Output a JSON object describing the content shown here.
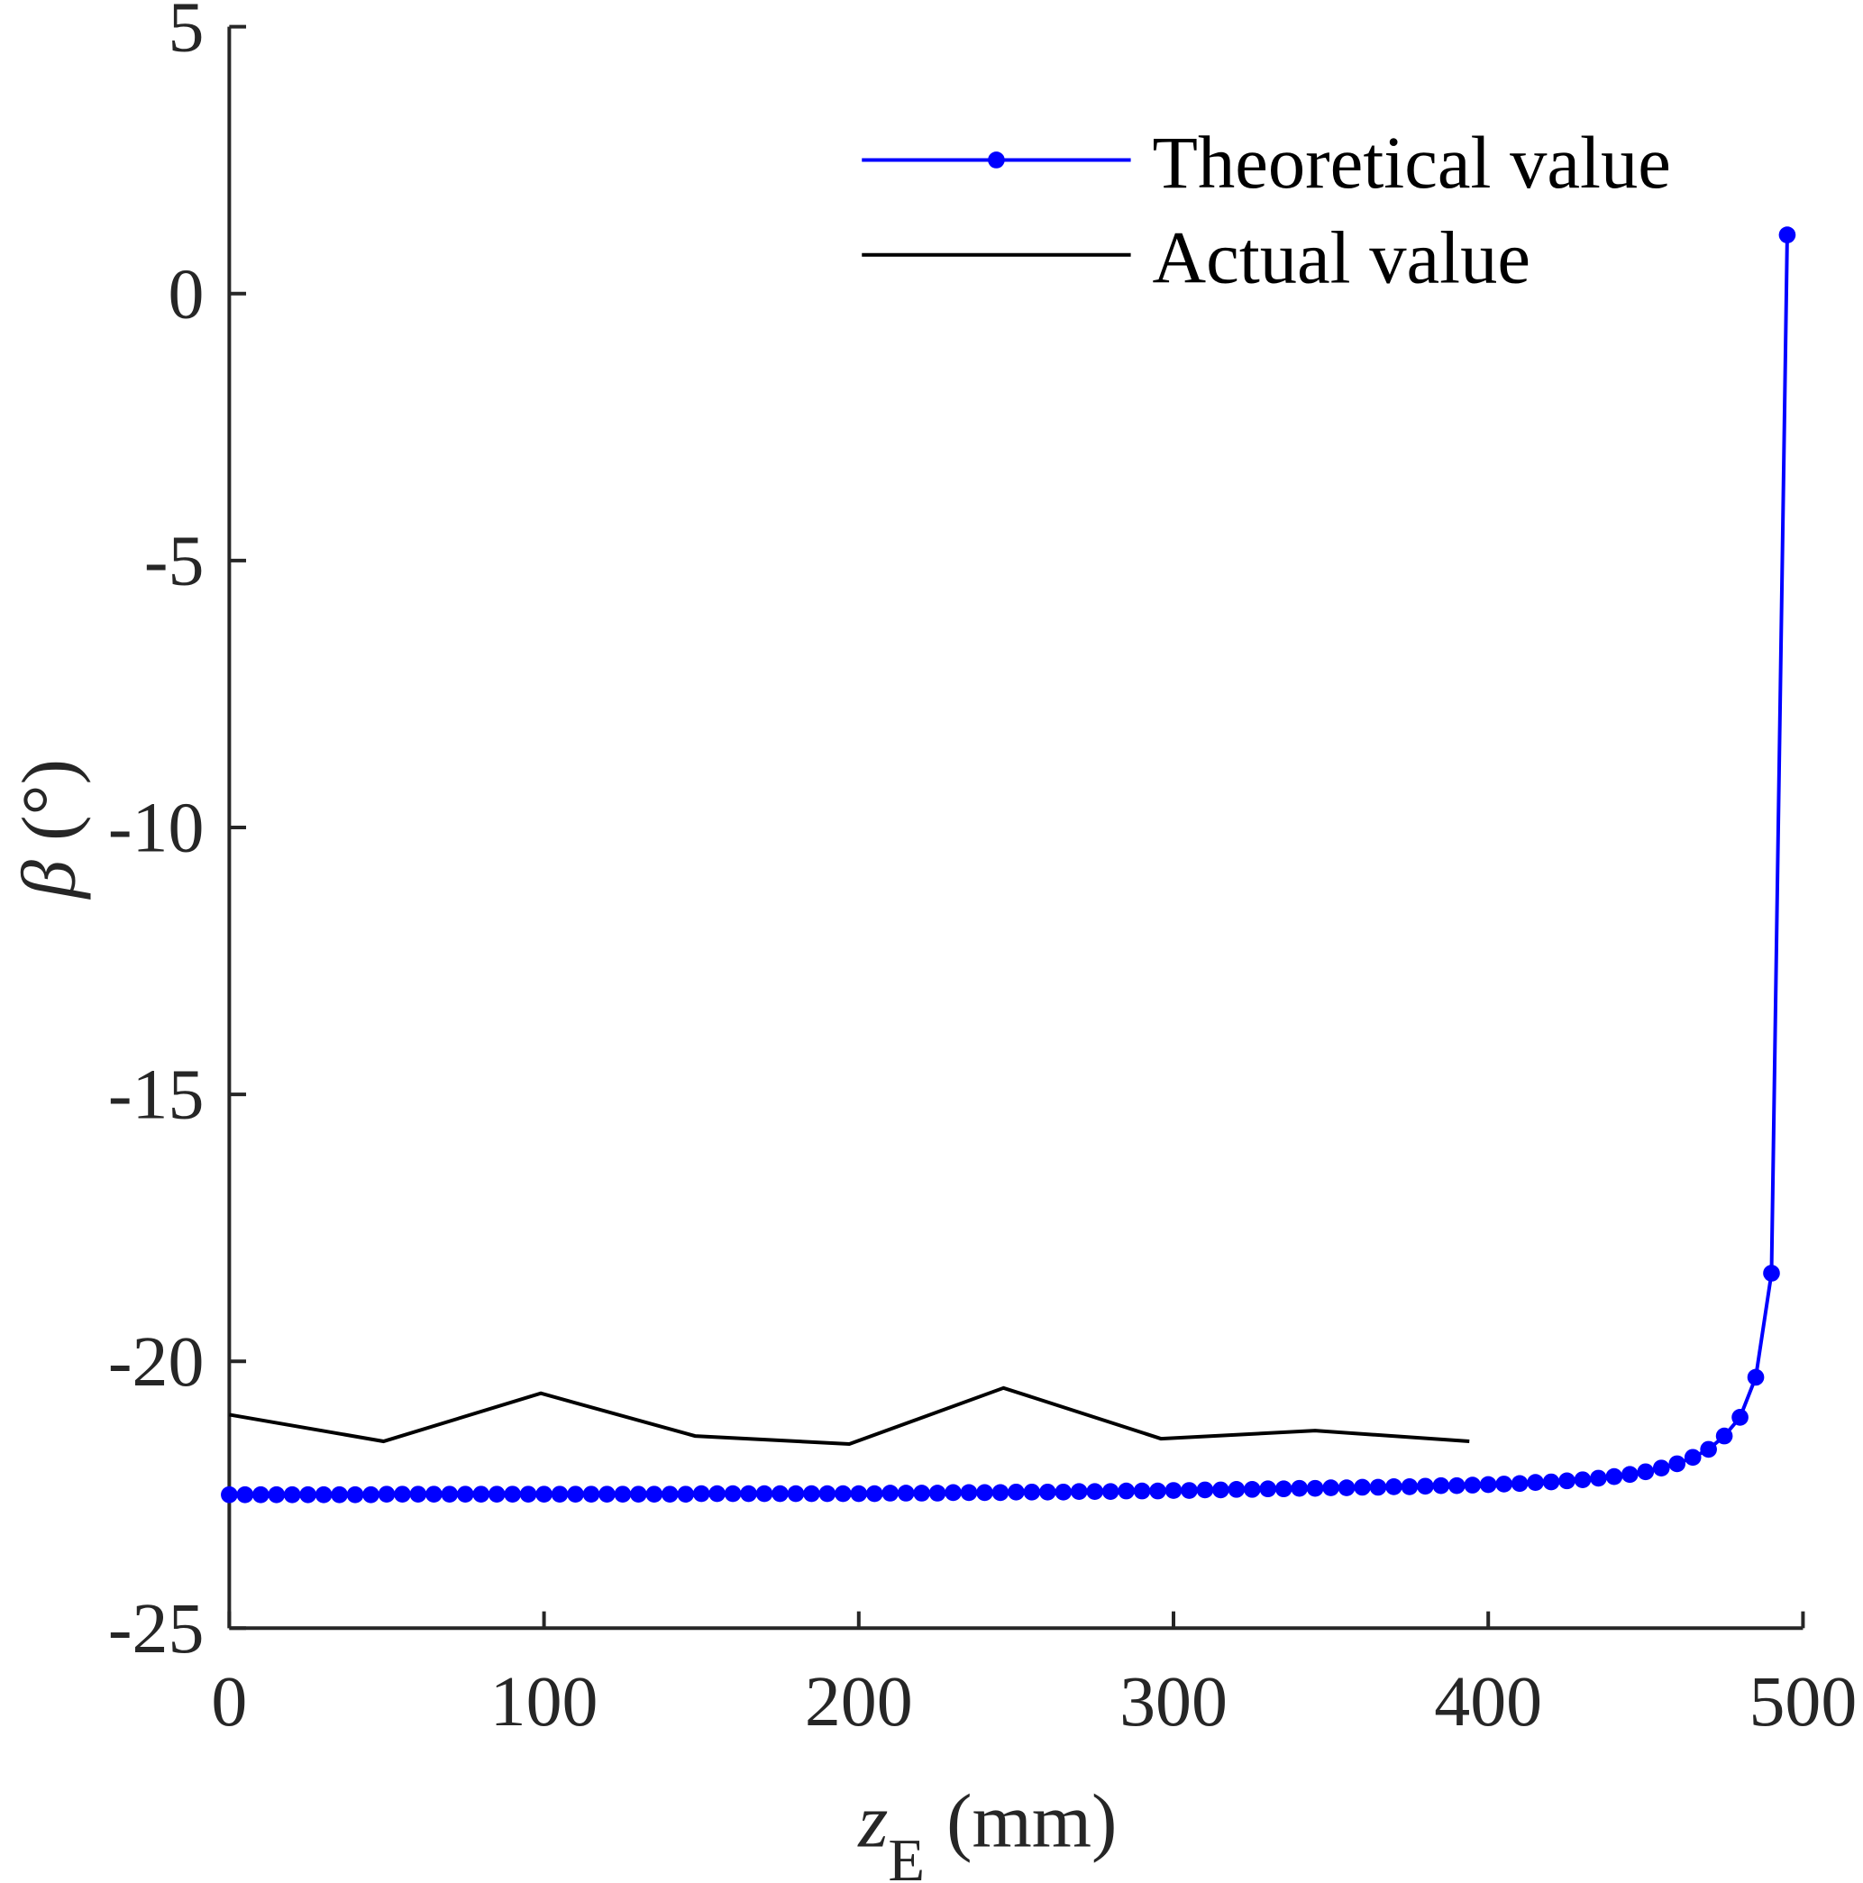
{
  "chart_data": {
    "type": "line",
    "xlabel_main": "z",
    "xlabel_sub": "E",
    "xlabel_unit": "(mm)",
    "ylabel_symbol": "β",
    "ylabel_unit": "(°)",
    "xlim": [
      0,
      500
    ],
    "ylim": [
      -25,
      5
    ],
    "xticks": [
      "0",
      "100",
      "200",
      "300",
      "400",
      "500"
    ],
    "yticks": [
      "5",
      "0",
      "-5",
      "-10",
      "-15",
      "-20",
      "-25"
    ],
    "xtick_values": [
      0,
      100,
      200,
      300,
      400,
      500
    ],
    "ytick_values": [
      5,
      0,
      -5,
      -10,
      -15,
      -20,
      -25
    ],
    "grid": false,
    "legend_position": "top-right",
    "series": [
      {
        "name": "Theoretical value",
        "color": "#0000ff",
        "marker": "dot",
        "x": [
          0,
          5,
          10,
          15,
          20,
          25,
          30,
          35,
          40,
          45,
          50,
          55,
          60,
          65,
          70,
          75,
          80,
          85,
          90,
          95,
          100,
          105,
          110,
          115,
          120,
          125,
          130,
          135,
          140,
          145,
          150,
          155,
          160,
          165,
          170,
          175,
          180,
          185,
          190,
          195,
          200,
          205,
          210,
          215,
          220,
          225,
          230,
          235,
          240,
          245,
          250,
          255,
          260,
          265,
          270,
          275,
          280,
          285,
          290,
          295,
          300,
          305,
          310,
          315,
          320,
          325,
          330,
          335,
          340,
          345,
          350,
          355,
          360,
          365,
          370,
          375,
          380,
          385,
          390,
          395,
          400,
          405,
          410,
          415,
          420,
          425,
          430,
          435,
          440,
          445,
          450,
          455,
          460,
          465,
          470,
          475,
          480,
          485,
          490,
          495
        ],
        "y": [
          -22.5,
          -22.5,
          -22.5,
          -22.5,
          -22.5,
          -22.5,
          -22.5,
          -22.5,
          -22.5,
          -22.5,
          -22.49,
          -22.49,
          -22.49,
          -22.49,
          -22.49,
          -22.49,
          -22.49,
          -22.49,
          -22.49,
          -22.49,
          -22.49,
          -22.49,
          -22.49,
          -22.49,
          -22.49,
          -22.49,
          -22.49,
          -22.49,
          -22.49,
          -22.49,
          -22.48,
          -22.48,
          -22.48,
          -22.48,
          -22.48,
          -22.48,
          -22.48,
          -22.48,
          -22.48,
          -22.48,
          -22.48,
          -22.48,
          -22.47,
          -22.47,
          -22.47,
          -22.47,
          -22.46,
          -22.46,
          -22.46,
          -22.46,
          -22.45,
          -22.45,
          -22.45,
          -22.45,
          -22.44,
          -22.44,
          -22.44,
          -22.43,
          -22.43,
          -22.43,
          -22.42,
          -22.42,
          -22.41,
          -22.41,
          -22.4,
          -22.4,
          -22.39,
          -22.39,
          -22.38,
          -22.38,
          -22.37,
          -22.37,
          -22.36,
          -22.36,
          -22.35,
          -22.35,
          -22.34,
          -22.33,
          -22.33,
          -22.32,
          -22.31,
          -22.3,
          -22.29,
          -22.27,
          -22.26,
          -22.24,
          -22.22,
          -22.19,
          -22.16,
          -22.12,
          -22.07,
          -22.0,
          -21.92,
          -21.8,
          -21.65,
          -21.4,
          -21.05,
          -20.3,
          -18.35,
          1.1
        ]
      },
      {
        "name": "Actual value",
        "color": "#000000",
        "marker": "none",
        "x": [
          0,
          49,
          99,
          148,
          197,
          246,
          296,
          345,
          394
        ],
        "y": [
          -21.0,
          -21.5,
          -20.6,
          -21.4,
          -21.55,
          -20.5,
          -21.45,
          -21.3,
          -21.5
        ]
      }
    ]
  }
}
